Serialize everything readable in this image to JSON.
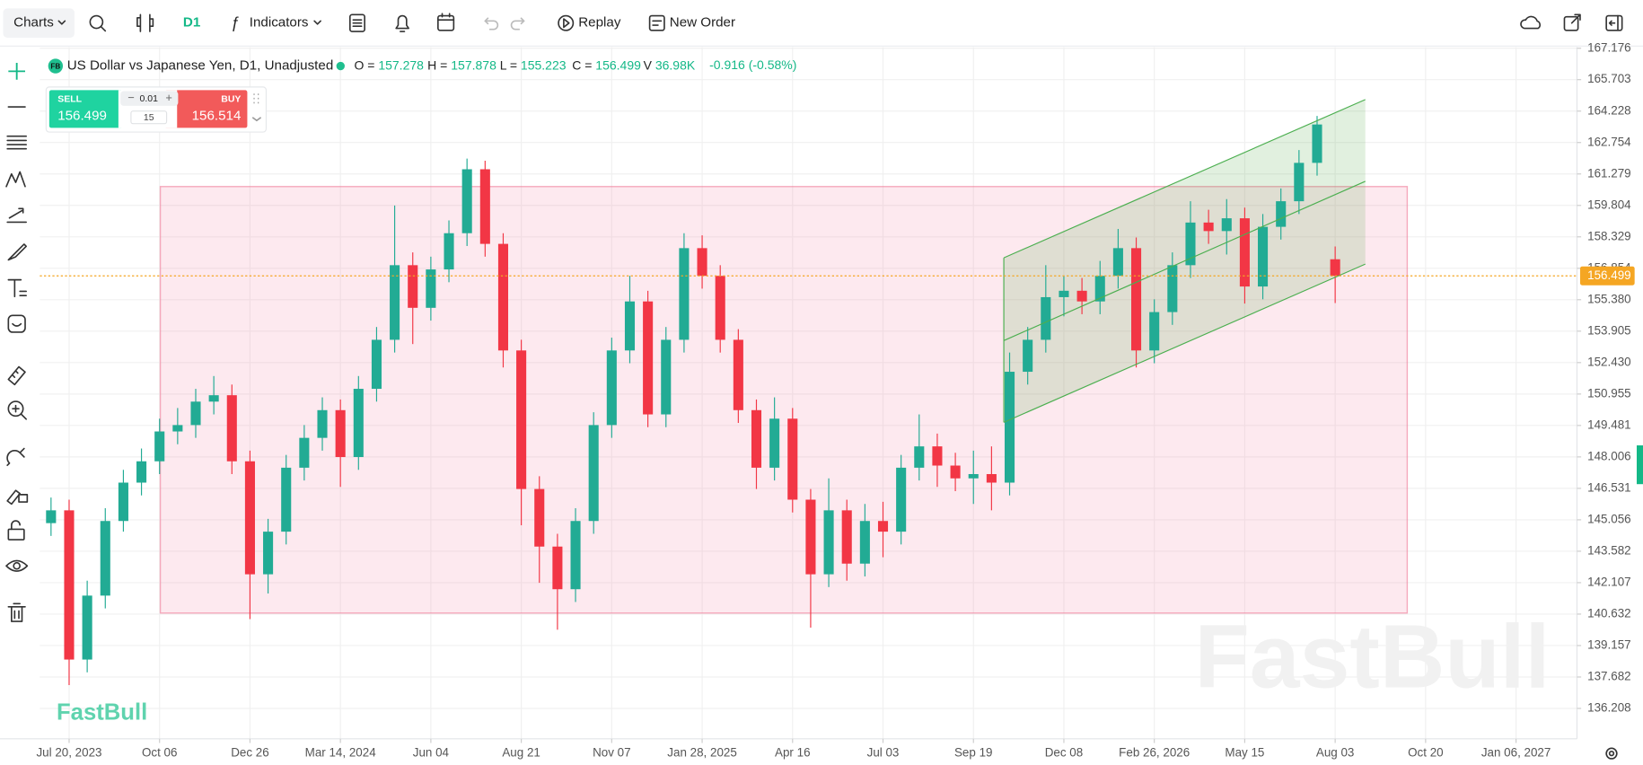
{
  "toolbar": {
    "charts": "Charts",
    "interval": "D1",
    "indicators": "Indicators",
    "replay": "Replay",
    "new_order": "New Order"
  },
  "symbol": {
    "badge": "FB",
    "title": "US Dollar vs Japanese Yen, D1, Unadjusted",
    "legend": [
      {
        "label": "O =",
        "value": 157.278
      },
      {
        "label": "H =",
        "value": 157.878
      },
      {
        "label": "L =",
        "value": 155.223
      },
      {
        "label": "C =",
        "value": 156.499
      },
      {
        "label": "V",
        "value": "36.98K"
      }
    ],
    "change": "-0.916 (-0.58%)"
  },
  "trade": {
    "sell": "SELL",
    "sell_price": 156.499,
    "lot": 0.01,
    "qty": 15,
    "buy": "BUY",
    "buy_price": 156.514
  },
  "watermarks": [
    "FastBull",
    "FastBull"
  ],
  "chart_data": {
    "type": "candlestick",
    "up_color": "#22ab94",
    "down_color": "#f23645",
    "grid": true,
    "price_line_color": "#f5a623",
    "xlim": [
      -0.324,
      16.674
    ],
    "xticks": [
      {
        "value": 0,
        "label": "Jul 20, 2023"
      },
      {
        "value": 1,
        "label": "Oct 06"
      },
      {
        "value": 2,
        "label": "Dec 26"
      },
      {
        "value": 3,
        "label": "Mar 14, 2024"
      },
      {
        "value": 4,
        "label": "Jun 04"
      },
      {
        "value": 5,
        "label": "Aug 21"
      },
      {
        "value": 6,
        "label": "Nov 07"
      },
      {
        "value": 7,
        "label": "Jan 28, 2025"
      },
      {
        "value": 8,
        "label": "Apr 16"
      },
      {
        "value": 9,
        "label": "Jul 03"
      },
      {
        "value": 10,
        "label": "Sep 19"
      },
      {
        "value": 11,
        "label": "Dec 08"
      },
      {
        "value": 12,
        "label": "Feb 26, 2026"
      },
      {
        "value": 13,
        "label": "May 15"
      },
      {
        "value": 14,
        "label": "Aug 03"
      },
      {
        "value": 15,
        "label": "Oct 20"
      },
      {
        "value": 16,
        "label": "Jan 06, 2027"
      }
    ],
    "ylim": [
      134.783,
      167.227
    ],
    "yticks": [
      167.176,
      165.703,
      164.228,
      162.754,
      161.279,
      159.804,
      158.329,
      156.854,
      {
        "value": 155.38,
        "label": "155.380"
      },
      153.905,
      {
        "value": 152.43,
        "label": "152.430"
      },
      150.955,
      149.481,
      148.006,
      146.531,
      145.056,
      143.582,
      142.107,
      140.632,
      139.157,
      137.682,
      136.208
    ],
    "x": [
      -0.2,
      0,
      0.2,
      0.4,
      0.6,
      0.8,
      1,
      1.2,
      1.4,
      1.6,
      1.8,
      2,
      2.2,
      2.4,
      2.6,
      2.8,
      3,
      3.2,
      3.4,
      3.6,
      3.8,
      4,
      4.2,
      4.4,
      4.6,
      4.8,
      5,
      5.2,
      5.4,
      5.6,
      5.8,
      6,
      6.2,
      6.4,
      6.6,
      6.8,
      7,
      7.2,
      7.4,
      7.6,
      7.8,
      8,
      8.2,
      8.4,
      8.6,
      8.8,
      9,
      9.2,
      9.4,
      9.6,
      9.8,
      10,
      10.2,
      10.4,
      10.6,
      10.8,
      11,
      11.2,
      11.4,
      11.6,
      11.8,
      12,
      12.2,
      12.4,
      12.6,
      12.8,
      13,
      13.2,
      13.4,
      13.6,
      13.8,
      14
    ],
    "open": [
      144.9,
      145.5,
      138.5,
      141.5,
      145.0,
      146.8,
      147.8,
      149.2,
      149.5,
      150.6,
      150.9,
      147.8,
      142.5,
      144.5,
      147.5,
      148.9,
      150.2,
      148.0,
      151.2,
      153.5,
      157.0,
      155.0,
      156.8,
      158.5,
      161.5,
      158.0,
      153.0,
      146.5,
      143.8,
      141.8,
      145.0,
      149.5,
      153.0,
      155.3,
      150.0,
      153.5,
      157.8,
      156.5,
      153.5,
      150.2,
      147.5,
      149.8,
      146.0,
      142.5,
      145.5,
      143.0,
      145.0,
      144.5,
      147.5,
      148.5,
      147.6,
      147.0,
      147.2,
      146.8,
      152.0,
      153.5,
      155.5,
      155.8,
      155.3,
      156.5,
      157.8,
      153.0,
      154.8,
      157.0,
      159.0,
      158.6,
      159.2,
      156.0,
      158.8,
      160.0,
      161.8,
      157.278
    ],
    "high": [
      146.1,
      146.0,
      142.2,
      145.6,
      147.4,
      148.4,
      149.8,
      150.3,
      151.2,
      151.8,
      151.4,
      148.3,
      145.1,
      148.1,
      149.5,
      150.8,
      150.7,
      151.8,
      154.1,
      159.8,
      157.6,
      157.4,
      159.1,
      162.0,
      161.9,
      158.5,
      153.5,
      147.1,
      144.4,
      145.6,
      150.1,
      153.6,
      156.5,
      155.8,
      154.1,
      158.5,
      158.4,
      157.0,
      154.0,
      150.7,
      150.8,
      150.3,
      146.5,
      147.0,
      146.0,
      145.8,
      145.9,
      148.1,
      150.0,
      149.1,
      148.2,
      148.3,
      148.5,
      152.9,
      154.1,
      157.0,
      156.5,
      156.4,
      157.2,
      158.7,
      158.3,
      155.4,
      157.6,
      160.0,
      159.6,
      160.1,
      159.7,
      159.4,
      160.6,
      162.4,
      164.0,
      157.878
    ],
    "low": [
      144.3,
      137.3,
      137.9,
      140.9,
      144.5,
      146.2,
      147.2,
      148.6,
      148.9,
      150.0,
      147.2,
      140.4,
      141.6,
      143.9,
      146.9,
      148.3,
      146.6,
      147.4,
      150.6,
      152.9,
      153.3,
      154.4,
      156.2,
      157.9,
      157.4,
      152.2,
      144.8,
      142.1,
      139.9,
      141.2,
      144.4,
      148.9,
      152.4,
      149.4,
      149.4,
      152.9,
      155.9,
      152.9,
      149.6,
      146.5,
      146.9,
      145.4,
      140.0,
      141.9,
      142.2,
      142.4,
      143.3,
      143.9,
      146.9,
      146.6,
      146.4,
      145.8,
      145.5,
      146.2,
      151.4,
      152.9,
      154.6,
      154.7,
      154.7,
      155.9,
      152.2,
      152.4,
      154.2,
      156.4,
      158.0,
      157.5,
      155.2,
      155.4,
      158.2,
      159.4,
      161.2,
      155.223
    ],
    "close": [
      145.5,
      138.5,
      141.5,
      145.0,
      146.8,
      147.8,
      149.2,
      149.5,
      150.6,
      150.9,
      147.8,
      142.5,
      144.5,
      147.5,
      148.9,
      150.2,
      148.0,
      151.2,
      153.5,
      157.0,
      155.0,
      156.8,
      158.5,
      161.5,
      158.0,
      153.0,
      146.5,
      143.8,
      141.8,
      145.0,
      149.5,
      153.0,
      155.3,
      150.0,
      153.5,
      157.8,
      156.5,
      153.5,
      150.2,
      147.5,
      149.8,
      146.0,
      142.5,
      145.5,
      143.0,
      145.0,
      144.5,
      147.5,
      148.5,
      147.6,
      147.0,
      147.2,
      146.8,
      152.0,
      153.5,
      155.5,
      155.8,
      155.3,
      156.5,
      157.8,
      153.0,
      154.8,
      157.0,
      159.0,
      158.6,
      159.2,
      156.0,
      158.8,
      160.0,
      161.8,
      163.6,
      156.499
    ]
  }
}
